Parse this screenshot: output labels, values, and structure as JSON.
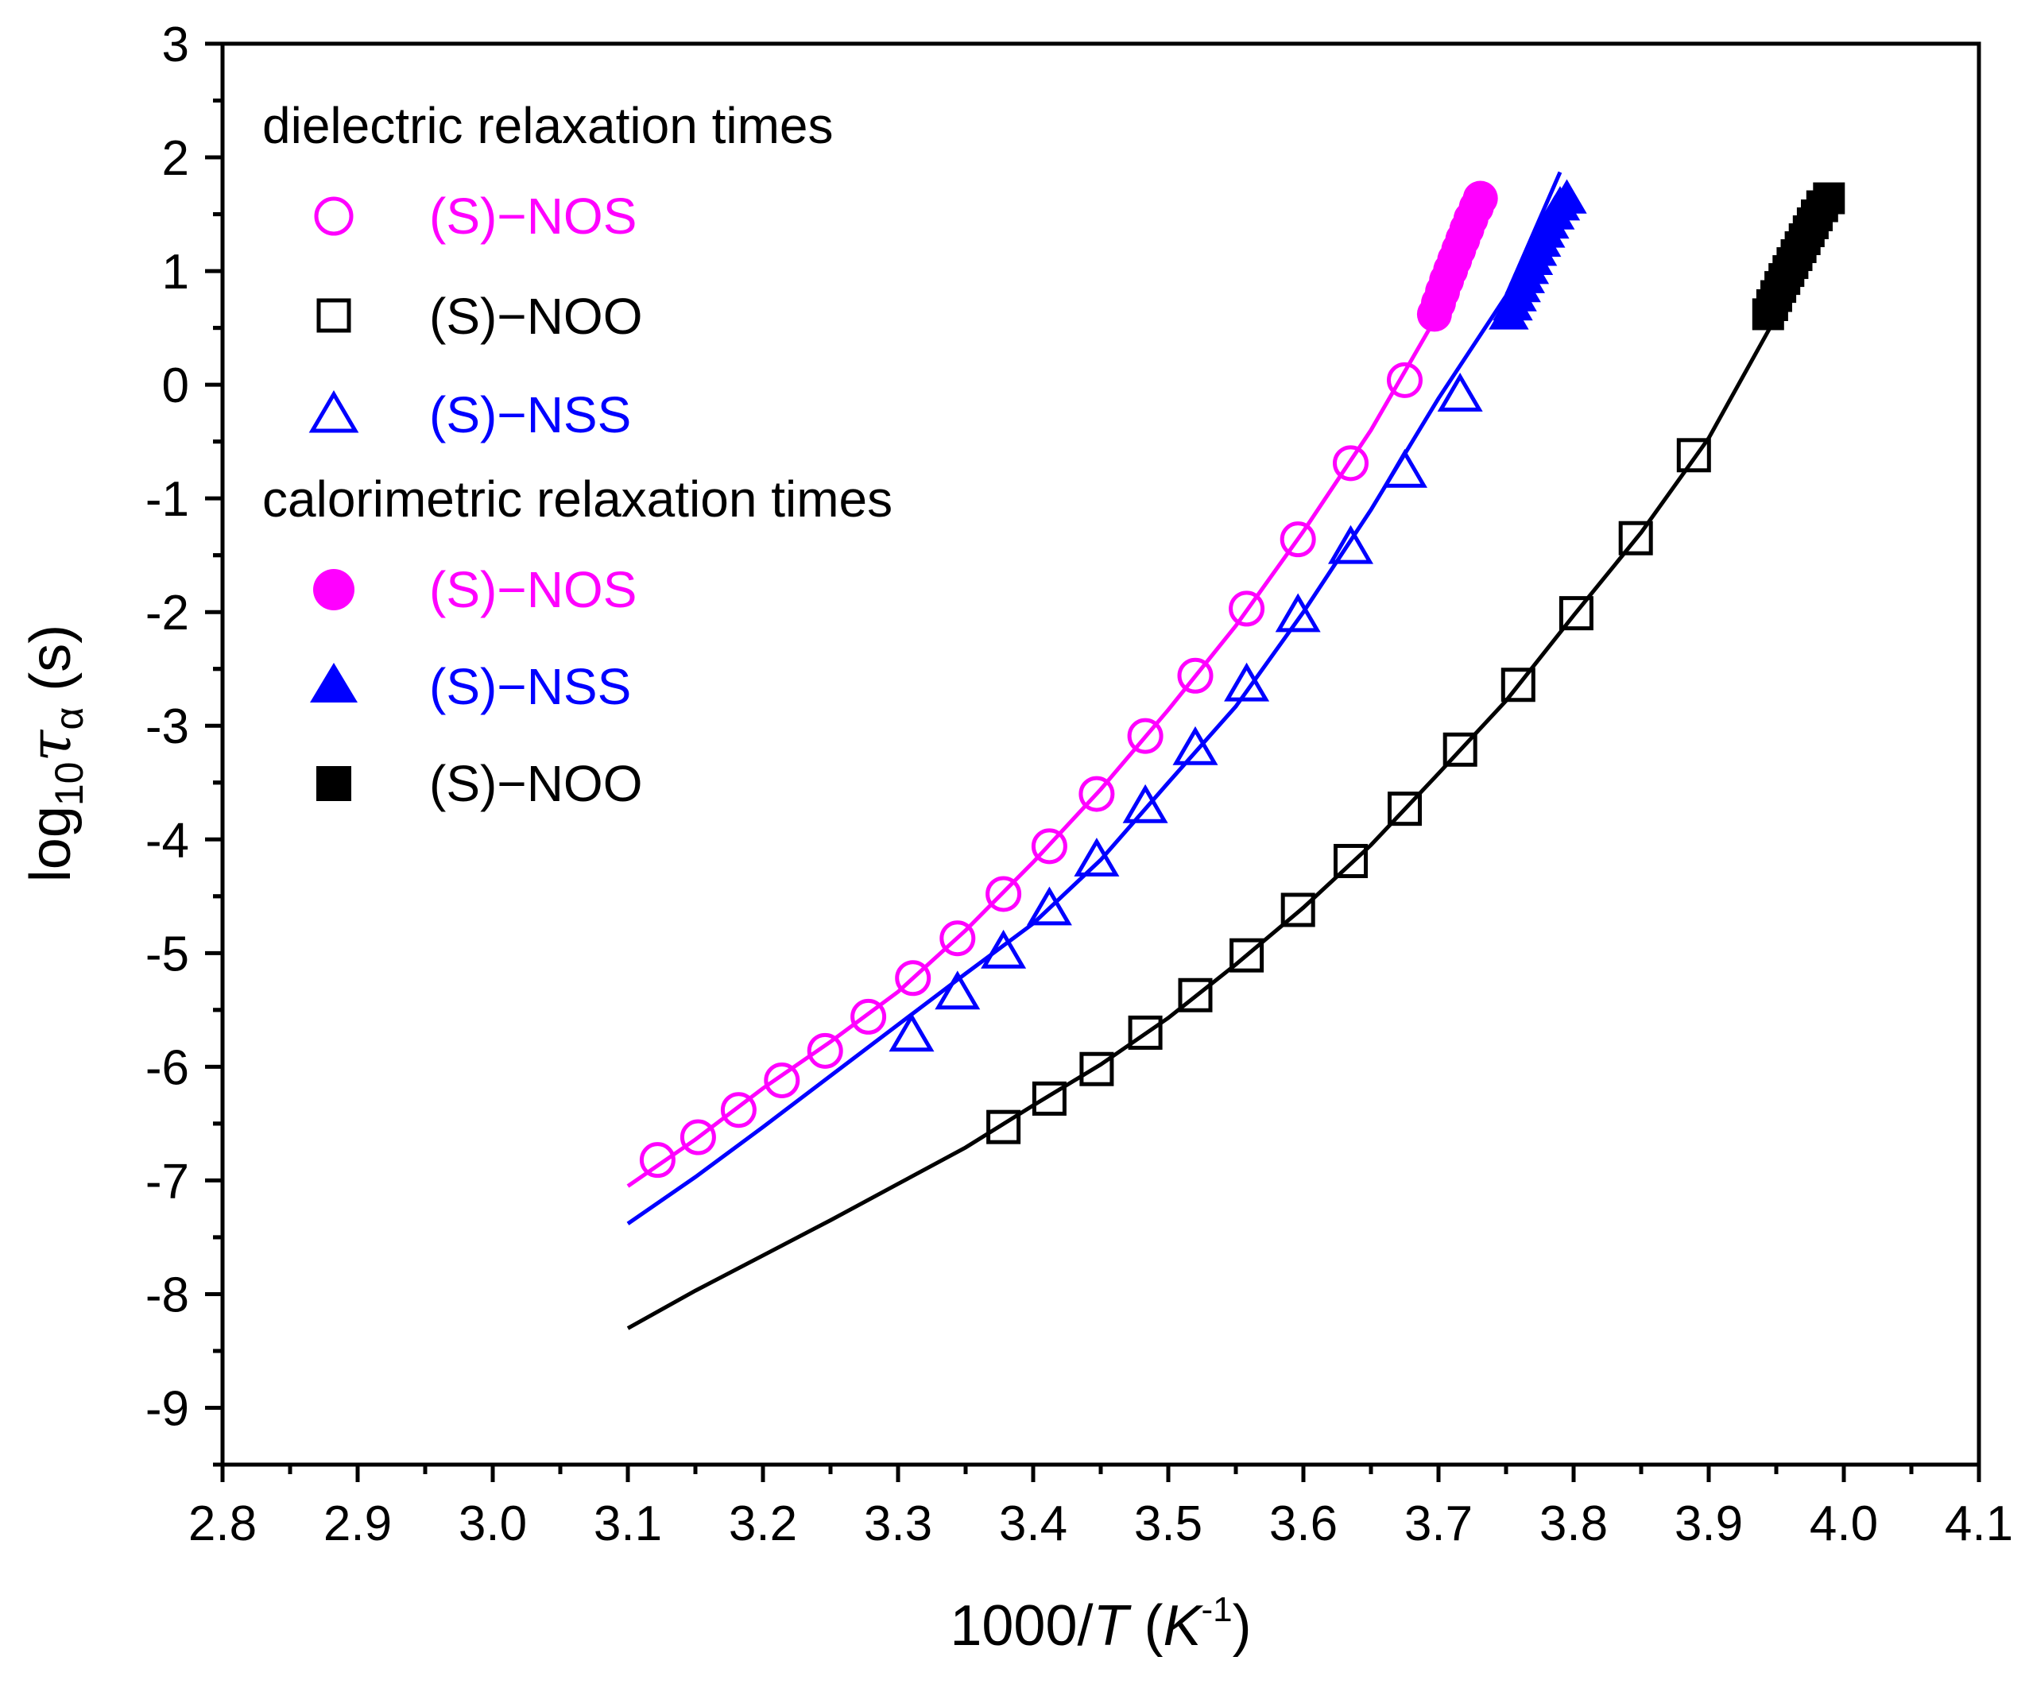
{
  "chart_data": {
    "type": "scatter",
    "xlabel_parts": {
      "pre": "1000/",
      "T": "T",
      "open": " (",
      "K": "K",
      "sup": "-1",
      "close": ")"
    },
    "ylabel_parts": {
      "log": "log",
      "sub10": "10",
      "tau": "τ",
      "alpha": "α",
      "unit": " (s)"
    },
    "xlim": [
      2.8,
      4.1
    ],
    "ylim": [
      -9.5,
      3
    ],
    "x_ticks": [
      2.8,
      2.9,
      3.0,
      3.1,
      3.2,
      3.3,
      3.4,
      3.5,
      3.6,
      3.7,
      3.8,
      3.9,
      4.0,
      4.1
    ],
    "x_tick_labels": [
      "2.8",
      "2.9",
      "3.0",
      "3.1",
      "3.2",
      "3.3",
      "3.4",
      "3.5",
      "3.6",
      "3.7",
      "3.8",
      "3.9",
      "4.0",
      "4.1"
    ],
    "y_ticks": [
      -9,
      -8,
      -7,
      -6,
      -5,
      -4,
      -3,
      -2,
      -1,
      0,
      1,
      2,
      3
    ],
    "y_tick_labels": [
      "-9",
      "-8",
      "-7",
      "-6",
      "-5",
      "-4",
      "-3",
      "-2",
      "-1",
      "0",
      "1",
      "2",
      "3"
    ],
    "grid": false,
    "legend_position": "top-left",
    "legend": {
      "group1_title": "dielectric relaxation times",
      "group1_entries": [
        {
          "label": "(S)−NOS",
          "marker": "circle-open",
          "color": "#ff00ff"
        },
        {
          "label": "(S)−NOO",
          "marker": "square-open",
          "color": "#000000"
        },
        {
          "label": "(S)−NSS",
          "marker": "triangle-open",
          "color": "#0000ff"
        }
      ],
      "group2_title": "calorimetric relaxation times",
      "group2_entries": [
        {
          "label": "(S)−NOS",
          "marker": "circle-filled",
          "color": "#ff00ff"
        },
        {
          "label": "(S)−NSS",
          "marker": "triangle-filled",
          "color": "#0000ff"
        },
        {
          "label": "(S)−NOO",
          "marker": "square-filled",
          "color": "#000000"
        }
      ]
    },
    "series": [
      {
        "name": "(S)−NOS",
        "group": "dielectric",
        "marker": "circle-open",
        "color": "#ff00ff",
        "x": [
          3.122,
          3.152,
          3.182,
          3.214,
          3.246,
          3.278,
          3.311,
          3.344,
          3.378,
          3.412,
          3.447,
          3.483,
          3.52,
          3.558,
          3.596,
          3.635,
          3.675
        ],
        "y": [
          -6.82,
          -6.62,
          -6.38,
          -6.12,
          -5.86,
          -5.56,
          -5.22,
          -4.87,
          -4.48,
          -4.06,
          -3.6,
          -3.09,
          -2.56,
          -1.97,
          -1.36,
          -0.69,
          0.04
        ]
      },
      {
        "name": "(S)−NOO",
        "group": "dielectric",
        "marker": "square-open",
        "color": "#000000",
        "x": [
          3.378,
          3.412,
          3.447,
          3.483,
          3.52,
          3.558,
          3.596,
          3.635,
          3.675,
          3.716,
          3.759,
          3.802,
          3.846,
          3.889
        ],
        "y": [
          -6.53,
          -6.28,
          -6.02,
          -5.7,
          -5.37,
          -5.02,
          -4.62,
          -4.19,
          -3.73,
          -3.21,
          -2.64,
          -2.01,
          -1.35,
          -0.62
        ]
      },
      {
        "name": "(S)−NSS",
        "group": "dielectric",
        "marker": "triangle-open",
        "color": "#0000ff",
        "x": [
          3.31,
          3.344,
          3.378,
          3.412,
          3.447,
          3.483,
          3.52,
          3.558,
          3.596,
          3.635,
          3.675,
          3.716
        ],
        "y": [
          -5.72,
          -5.35,
          -4.99,
          -4.61,
          -4.18,
          -3.71,
          -3.2,
          -2.64,
          -2.03,
          -1.43,
          -0.76,
          -0.09
        ]
      },
      {
        "name": "(S)−NOS",
        "group": "calorimetric",
        "marker": "circle-filled",
        "color": "#ff00ff",
        "x": [
          3.697,
          3.7,
          3.703,
          3.706,
          3.709,
          3.712,
          3.715,
          3.718,
          3.721,
          3.724,
          3.728,
          3.731
        ],
        "y": [
          0.62,
          0.72,
          0.82,
          0.92,
          1.01,
          1.1,
          1.19,
          1.28,
          1.37,
          1.46,
          1.56,
          1.64
        ]
      },
      {
        "name": "(S)−NSS",
        "group": "calorimetric",
        "marker": "triangle-filled",
        "color": "#0000ff",
        "x": [
          3.752,
          3.755,
          3.758,
          3.761,
          3.764,
          3.767,
          3.77,
          3.773,
          3.776,
          3.779,
          3.782,
          3.786,
          3.79,
          3.795
        ],
        "y": [
          0.62,
          0.7,
          0.78,
          0.86,
          0.94,
          1.02,
          1.1,
          1.18,
          1.26,
          1.34,
          1.42,
          1.5,
          1.58,
          1.64
        ]
      },
      {
        "name": "(S)−NOO",
        "group": "calorimetric",
        "marker": "square-filled",
        "color": "#000000",
        "x": [
          3.944,
          3.947,
          3.95,
          3.953,
          3.956,
          3.959,
          3.962,
          3.965,
          3.968,
          3.971,
          3.974,
          3.977,
          3.98,
          3.984,
          3.989
        ],
        "y": [
          0.62,
          0.7,
          0.78,
          0.86,
          0.93,
          1.0,
          1.07,
          1.14,
          1.21,
          1.28,
          1.35,
          1.42,
          1.49,
          1.57,
          1.64
        ]
      }
    ],
    "fit_lines": [
      {
        "color": "#ff00ff",
        "x": [
          3.1,
          3.15,
          3.2,
          3.25,
          3.3,
          3.35,
          3.4,
          3.45,
          3.5,
          3.55,
          3.6,
          3.65,
          3.7,
          3.73
        ],
        "y": [
          -7.05,
          -6.64,
          -6.19,
          -5.78,
          -5.34,
          -4.8,
          -4.2,
          -3.56,
          -2.86,
          -2.12,
          -1.29,
          -0.4,
          0.63,
          1.77
        ]
      },
      {
        "color": "#0000ff",
        "x": [
          3.1,
          3.15,
          3.2,
          3.25,
          3.3,
          3.35,
          3.4,
          3.45,
          3.5,
          3.55,
          3.6,
          3.65,
          3.7,
          3.75,
          3.79
        ],
        "y": [
          -7.38,
          -6.97,
          -6.53,
          -6.08,
          -5.63,
          -5.18,
          -4.74,
          -4.18,
          -3.5,
          -2.83,
          -2.0,
          -1.1,
          -0.12,
          0.78,
          1.87
        ]
      },
      {
        "color": "#000000",
        "x": [
          3.1,
          3.15,
          3.2,
          3.25,
          3.3,
          3.35,
          3.4,
          3.45,
          3.5,
          3.55,
          3.6,
          3.65,
          3.7,
          3.75,
          3.8,
          3.85,
          3.9,
          3.95,
          3.99
        ],
        "y": [
          -8.3,
          -7.97,
          -7.66,
          -7.35,
          -7.03,
          -6.71,
          -6.34,
          -5.98,
          -5.57,
          -5.1,
          -4.6,
          -4.05,
          -3.42,
          -2.78,
          -2.03,
          -1.3,
          -0.47,
          0.6,
          1.68
        ]
      }
    ]
  }
}
